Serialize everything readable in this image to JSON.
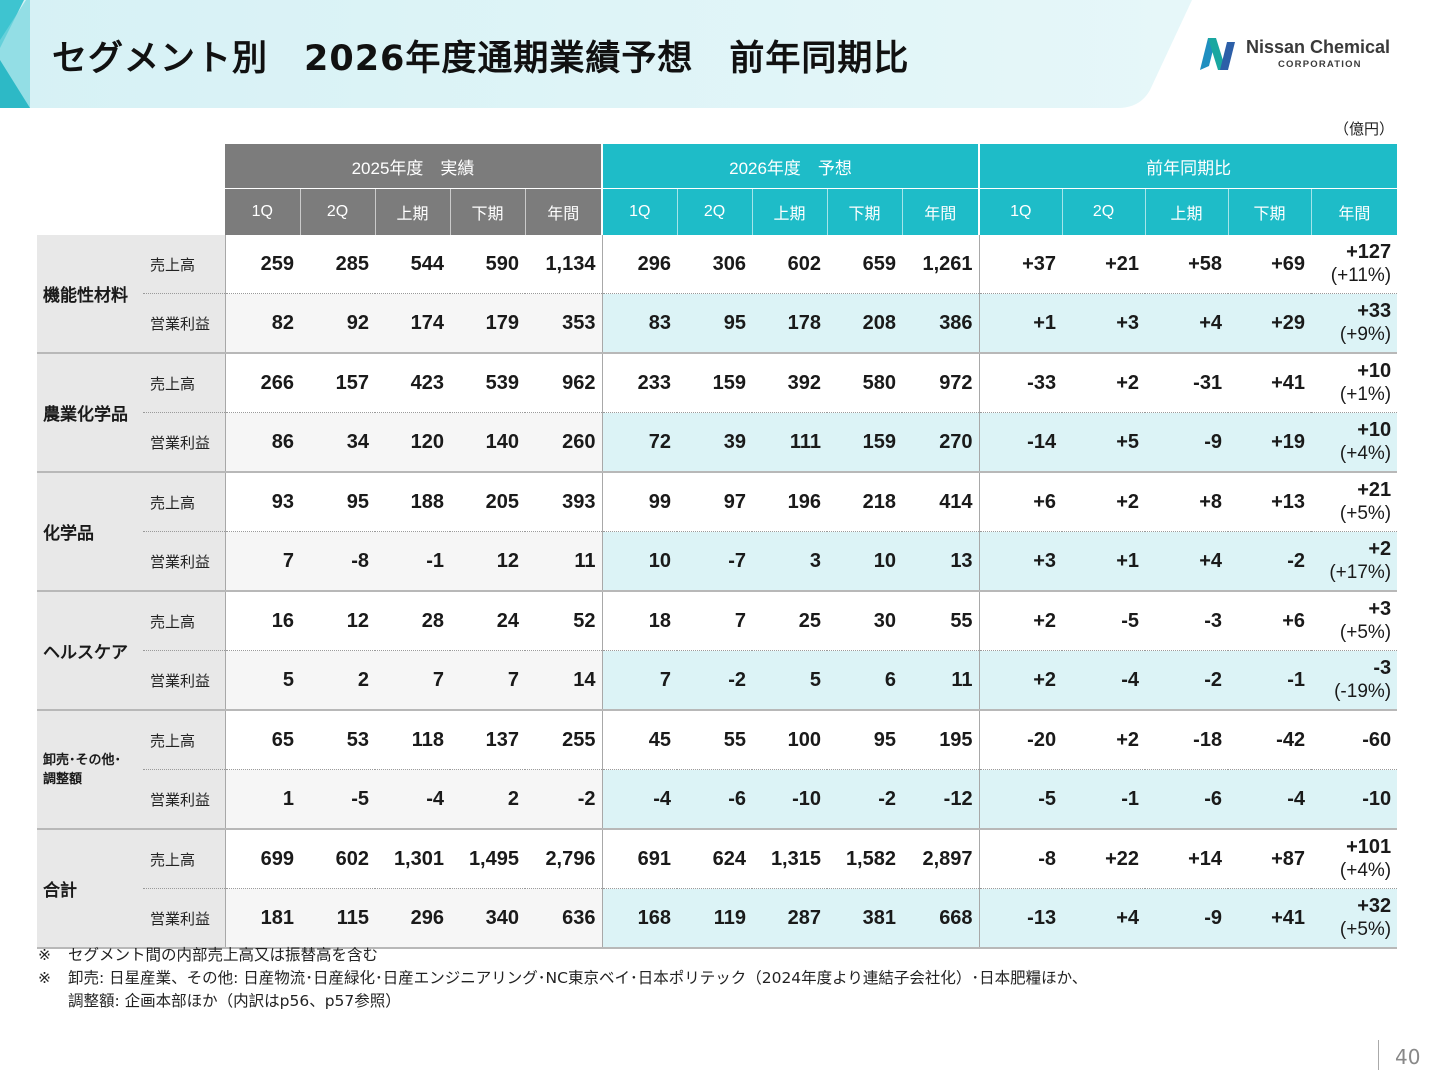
{
  "header": {
    "title": "セグメント別　2026年度通期業績予想　前年同期比",
    "logo_name": "Nissan Chemical",
    "logo_sub": "CORPORATION"
  },
  "unit": "（億円）",
  "colors": {
    "gray_header": "#7c7c7c",
    "teal_header": "#1ebcc8",
    "light_teal": "#dcf3f6",
    "band": "#dff4f7"
  },
  "table": {
    "groups": [
      "2025年度　実績",
      "2026年度　予想",
      "前年同期比"
    ],
    "cols": [
      "1Q",
      "2Q",
      "上期",
      "下期",
      "年間",
      "1Q",
      "2Q",
      "上期",
      "下期",
      "年間",
      "1Q",
      "2Q",
      "上期",
      "下期",
      "年間"
    ],
    "segments": [
      {
        "name": "機能性材料",
        "rows": [
          {
            "label": "売上高",
            "v25": [
              "259",
              "285",
              "544",
              "590",
              "1,134"
            ],
            "v26": [
              "296",
              "306",
              "602",
              "659",
              "1,261"
            ],
            "yoy": [
              "+37",
              "+21",
              "+58",
              "+69",
              "+127"
            ],
            "pct": "(+11%)"
          },
          {
            "label": "営業利益",
            "v25": [
              "82",
              "92",
              "174",
              "179",
              "353"
            ],
            "v26": [
              "83",
              "95",
              "178",
              "208",
              "386"
            ],
            "yoy": [
              "+1",
              "+3",
              "+4",
              "+29",
              "+33"
            ],
            "pct": "(+9%)"
          }
        ]
      },
      {
        "name": "農業化学品",
        "rows": [
          {
            "label": "売上高",
            "v25": [
              "266",
              "157",
              "423",
              "539",
              "962"
            ],
            "v26": [
              "233",
              "159",
              "392",
              "580",
              "972"
            ],
            "yoy": [
              "-33",
              "+2",
              "-31",
              "+41",
              "+10"
            ],
            "pct": "(+1%)"
          },
          {
            "label": "営業利益",
            "v25": [
              "86",
              "34",
              "120",
              "140",
              "260"
            ],
            "v26": [
              "72",
              "39",
              "111",
              "159",
              "270"
            ],
            "yoy": [
              "-14",
              "+5",
              "-9",
              "+19",
              "+10"
            ],
            "pct": "(+4%)"
          }
        ]
      },
      {
        "name": "化学品",
        "rows": [
          {
            "label": "売上高",
            "v25": [
              "93",
              "95",
              "188",
              "205",
              "393"
            ],
            "v26": [
              "99",
              "97",
              "196",
              "218",
              "414"
            ],
            "yoy": [
              "+6",
              "+2",
              "+8",
              "+13",
              "+21"
            ],
            "pct": "(+5%)"
          },
          {
            "label": "営業利益",
            "v25": [
              "7",
              "-8",
              "-1",
              "12",
              "11"
            ],
            "v26": [
              "10",
              "-7",
              "3",
              "10",
              "13"
            ],
            "yoy": [
              "+3",
              "+1",
              "+4",
              "-2",
              "+2"
            ],
            "pct": "(+17%)"
          }
        ]
      },
      {
        "name": "ヘルスケア",
        "rows": [
          {
            "label": "売上高",
            "v25": [
              "16",
              "12",
              "28",
              "24",
              "52"
            ],
            "v26": [
              "18",
              "7",
              "25",
              "30",
              "55"
            ],
            "yoy": [
              "+2",
              "-5",
              "-3",
              "+6",
              "+3"
            ],
            "pct": "(+5%)"
          },
          {
            "label": "営業利益",
            "v25": [
              "5",
              "2",
              "7",
              "7",
              "14"
            ],
            "v26": [
              "7",
              "-2",
              "5",
              "6",
              "11"
            ],
            "yoy": [
              "+2",
              "-4",
              "-2",
              "-1",
              "-3"
            ],
            "pct": "(-19%)"
          }
        ]
      },
      {
        "name": "卸売･その他･調整額",
        "name_line1": "卸売･その他･",
        "name_line2": "調整額",
        "rows": [
          {
            "label": "売上高",
            "v25": [
              "65",
              "53",
              "118",
              "137",
              "255"
            ],
            "v26": [
              "45",
              "55",
              "100",
              "95",
              "195"
            ],
            "yoy": [
              "-20",
              "+2",
              "-18",
              "-42",
              "-60"
            ],
            "pct": ""
          },
          {
            "label": "営業利益",
            "v25": [
              "1",
              "-5",
              "-4",
              "2",
              "-2"
            ],
            "v26": [
              "-4",
              "-6",
              "-10",
              "-2",
              "-12"
            ],
            "yoy": [
              "-5",
              "-1",
              "-6",
              "-4",
              "-10"
            ],
            "pct": ""
          }
        ]
      },
      {
        "name": "合計",
        "rows": [
          {
            "label": "売上高",
            "v25": [
              "699",
              "602",
              "1,301",
              "1,495",
              "2,796"
            ],
            "v26": [
              "691",
              "624",
              "1,315",
              "1,582",
              "2,897"
            ],
            "yoy": [
              "-8",
              "+22",
              "+14",
              "+87",
              "+101"
            ],
            "pct": "(+4%)"
          },
          {
            "label": "営業利益",
            "v25": [
              "181",
              "115",
              "296",
              "340",
              "636"
            ],
            "v26": [
              "168",
              "119",
              "287",
              "381",
              "668"
            ],
            "yoy": [
              "-13",
              "+4",
              "-9",
              "+41",
              "+32"
            ],
            "pct": "(+5%)"
          }
        ]
      }
    ]
  },
  "notes": [
    {
      "mark": "※",
      "text": "セグメント間の内部売上高又は振替高を含む"
    },
    {
      "mark": "※",
      "text": "卸売: 日星産業、その他: 日産物流･日産緑化･日産エンジニアリング･NC東京ベイ･日本ポリテック（2024年度より連結子会社化）･日本肥糧ほか、"
    },
    {
      "mark": "",
      "text": "調整額: 企画本部ほか（内訳はp56、p57参照）"
    }
  ],
  "page_number": "40"
}
